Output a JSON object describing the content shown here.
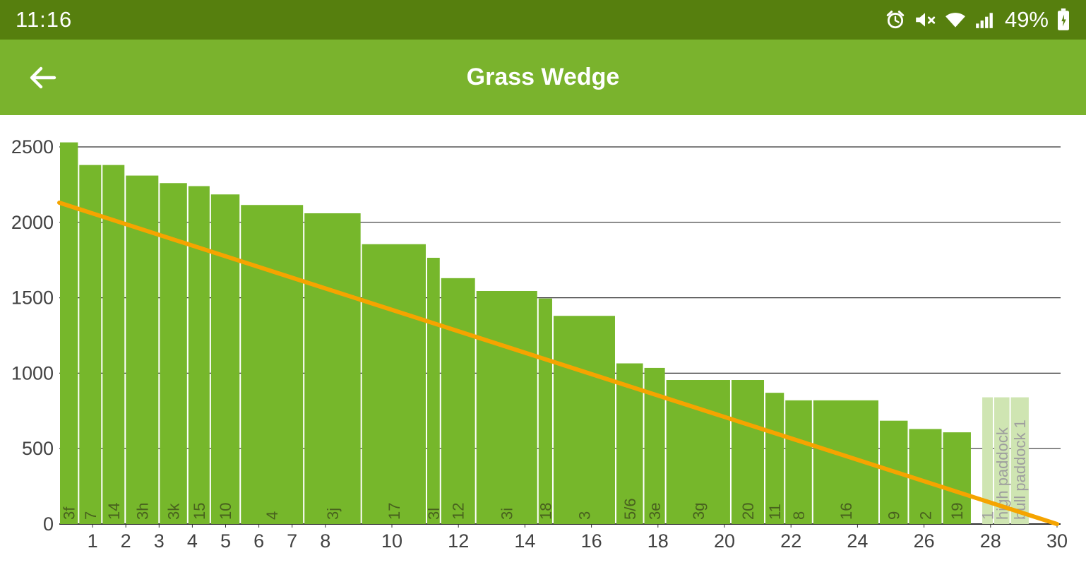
{
  "status_bar": {
    "time": "11:16",
    "battery_percent": "49%",
    "icons": [
      "alarm-icon",
      "mute-icon",
      "wifi-icon",
      "signal-strength-icon",
      "battery-charging-icon"
    ]
  },
  "app_bar": {
    "title": "Grass Wedge",
    "back_icon": "back-arrow-icon"
  },
  "chart_data": {
    "type": "bar",
    "title": "Grass Wedge",
    "xlabel": "",
    "ylabel": "",
    "x_axis": {
      "min": 0,
      "max": 30,
      "ticks": [
        1,
        2,
        3,
        4,
        5,
        6,
        7,
        8,
        10,
        12,
        14,
        16,
        18,
        20,
        22,
        24,
        26,
        28,
        30
      ]
    },
    "y_axis": {
      "min": 0,
      "max": 2500,
      "ticks": [
        0,
        500,
        1000,
        1500,
        2000,
        2500
      ]
    },
    "grid": true,
    "legend": "none",
    "bars": [
      {
        "label": "3f",
        "value": 2530,
        "width": 0.58
      },
      {
        "label": "7",
        "value": 2380,
        "width": 0.7
      },
      {
        "label": "14",
        "value": 2380,
        "width": 0.7
      },
      {
        "label": "3h",
        "value": 2310,
        "width": 1.02
      },
      {
        "label": "3k",
        "value": 2260,
        "width": 0.86
      },
      {
        "label": "15",
        "value": 2240,
        "width": 0.68
      },
      {
        "label": "10",
        "value": 2185,
        "width": 0.9
      },
      {
        "label": "4",
        "value": 2115,
        "width": 1.91
      },
      {
        "label": "3j",
        "value": 2060,
        "width": 1.73
      },
      {
        "label": "17",
        "value": 1855,
        "width": 1.96
      },
      {
        "label": "3l",
        "value": 1765,
        "width": 0.42
      },
      {
        "label": "12",
        "value": 1630,
        "width": 1.06
      },
      {
        "label": "3i",
        "value": 1545,
        "width": 1.87
      },
      {
        "label": "18",
        "value": 1495,
        "width": 0.45
      },
      {
        "label": "3",
        "value": 1380,
        "width": 1.89
      },
      {
        "label": "5/6",
        "value": 1065,
        "width": 0.84
      },
      {
        "label": "3e",
        "value": 1035,
        "width": 0.66
      },
      {
        "label": "3g",
        "value": 955,
        "width": 1.96
      },
      {
        "label": "20",
        "value": 955,
        "width": 1.02
      },
      {
        "label": "11",
        "value": 870,
        "width": 0.6
      },
      {
        "label": "8",
        "value": 820,
        "width": 0.84
      },
      {
        "label": "16",
        "value": 820,
        "width": 2.0
      },
      {
        "label": "9",
        "value": 685,
        "width": 0.88
      },
      {
        "label": "2",
        "value": 630,
        "width": 1.02
      },
      {
        "label": "19",
        "value": 608,
        "width": 0.88
      },
      {
        "label": "1",
        "value": 840,
        "width": 0.36,
        "pale": true,
        "gap_before": 0.3
      },
      {
        "label": "high paddock",
        "value": 840,
        "width": 0.5,
        "pale": true
      },
      {
        "label": "bull paddock 1",
        "value": 840,
        "width": 0.58,
        "pale": true
      }
    ],
    "demand_line": {
      "x": [
        0,
        30
      ],
      "y": [
        2130,
        0
      ]
    },
    "colors": {
      "bar": "#76B72B",
      "bar_pale": "#CFE5B2",
      "label": "#48611E",
      "label_pale": "#9E9E9E",
      "grid": "#303030",
      "axis_text": "#424242",
      "line": "#F5A400"
    }
  }
}
